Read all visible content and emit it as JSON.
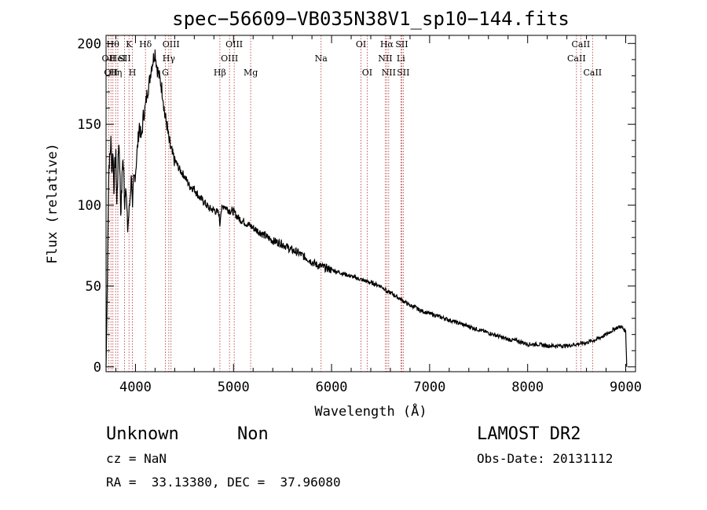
{
  "chart_data": {
    "type": "line",
    "title": "spec−56609−VB035N38V1_sp10−144.fits",
    "xlabel": "Wavelength (Å)",
    "ylabel": "Flux (relative)",
    "xlim": [
      3700,
      9100
    ],
    "ylim": [
      -3,
      205
    ],
    "xticks": [
      4000,
      5000,
      6000,
      7000,
      8000,
      9000
    ],
    "yticks": [
      0,
      50,
      100,
      150,
      200
    ],
    "grid": false,
    "series": [
      {
        "x": [
          3700,
          3710,
          3720,
          3730,
          3740,
          3750,
          3760,
          3770,
          3780,
          3790,
          3800,
          3810,
          3820,
          3830,
          3840,
          3850,
          3860,
          3870,
          3880,
          3890,
          3900,
          3920,
          3940,
          3960,
          3970,
          3980,
          4000,
          4020,
          4040,
          4060,
          4080,
          4100,
          4120,
          4140,
          4160,
          4180,
          4200,
          4220,
          4240,
          4260,
          4280,
          4300,
          4320,
          4340,
          4360,
          4380,
          4400,
          4450,
          4500,
          4550,
          4600,
          4650,
          4700,
          4750,
          4800,
          4850,
          4861,
          4870,
          4900,
          4950,
          5000,
          5050,
          5100,
          5150,
          5200,
          5250,
          5300,
          5350,
          5400,
          5450,
          5500,
          5550,
          5600,
          5650,
          5700,
          5750,
          5800,
          5850,
          5900,
          5950,
          6000,
          6050,
          6100,
          6150,
          6200,
          6250,
          6300,
          6350,
          6400,
          6450,
          6500,
          6550,
          6563,
          6600,
          6650,
          6700,
          6750,
          6800,
          6850,
          6900,
          6950,
          7000,
          7100,
          7200,
          7300,
          7400,
          7500,
          7600,
          7700,
          7800,
          7900,
          8000,
          8100,
          8200,
          8300,
          8400,
          8500,
          8600,
          8700,
          8800,
          8850,
          8900,
          8950,
          9000,
          9010
        ],
        "values": [
          0,
          35,
          90,
          125,
          130,
          140,
          120,
          135,
          110,
          125,
          130,
          100,
          120,
          140,
          125,
          95,
          110,
          130,
          120,
          100,
          115,
          85,
          100,
          120,
          95,
          115,
          120,
          135,
          150,
          140,
          155,
          160,
          170,
          175,
          185,
          190,
          195,
          185,
          180,
          175,
          168,
          155,
          150,
          140,
          135,
          130,
          128,
          122,
          118,
          112,
          110,
          105,
          102,
          98,
          97,
          95,
          88,
          96,
          100,
          97,
          96,
          92,
          90,
          88,
          86,
          84,
          82,
          80,
          78,
          77,
          76,
          74,
          72,
          71,
          69,
          67,
          65,
          63,
          62,
          61,
          60,
          59,
          58,
          57,
          56,
          55,
          54,
          53,
          52,
          51,
          50,
          48,
          46,
          46,
          44,
          42,
          40,
          38,
          37,
          35,
          34,
          33,
          31,
          29,
          27,
          25,
          23,
          21,
          19,
          17,
          16,
          14,
          14,
          13,
          13,
          13,
          14,
          15,
          17,
          20,
          22,
          24,
          25,
          22,
          0
        ]
      }
    ],
    "lines": [
      {
        "wave": 3727,
        "label": "OII",
        "row": 1
      },
      {
        "wave": 3750,
        "label": "OII",
        "row": 2
      },
      {
        "wave": 3770,
        "label": "Hθ",
        "row": 0
      },
      {
        "wave": 3798,
        "label": "Hη",
        "row": 2
      },
      {
        "wave": 3820,
        "label": "HeI",
        "row": 1
      },
      {
        "wave": 3889,
        "label": "SII",
        "row": 1
      },
      {
        "wave": 3934,
        "label": "K",
        "row": 0
      },
      {
        "wave": 3969,
        "label": "H",
        "row": 2
      },
      {
        "wave": 4102,
        "label": "Hδ",
        "row": 0
      },
      {
        "wave": 4305,
        "label": "G",
        "row": 2
      },
      {
        "wave": 4340,
        "label": "Hγ",
        "row": 1
      },
      {
        "wave": 4363,
        "label": "OIII",
        "row": 0
      },
      {
        "wave": 4861,
        "label": "Hβ",
        "row": 2
      },
      {
        "wave": 4959,
        "label": "OIII",
        "row": 1
      },
      {
        "wave": 5007,
        "label": "OIII",
        "row": 0
      },
      {
        "wave": 5175,
        "label": "Mg",
        "row": 2
      },
      {
        "wave": 5893,
        "label": "Na",
        "row": 1
      },
      {
        "wave": 6300,
        "label": "OI",
        "row": 0
      },
      {
        "wave": 6363,
        "label": "OI",
        "row": 2
      },
      {
        "wave": 6548,
        "label": "NII",
        "row": 1
      },
      {
        "wave": 6563,
        "label": "Hα",
        "row": 0
      },
      {
        "wave": 6583,
        "label": "NII",
        "row": 2
      },
      {
        "wave": 6707,
        "label": "Li",
        "row": 1
      },
      {
        "wave": 6716,
        "label": "SII",
        "row": 0
      },
      {
        "wave": 6731,
        "label": "SII",
        "row": 2
      },
      {
        "wave": 8498,
        "label": "CaII",
        "row": 1
      },
      {
        "wave": 8542,
        "label": "CaII",
        "row": 0
      },
      {
        "wave": 8662,
        "label": "CaII",
        "row": 2
      }
    ]
  },
  "footer": {
    "object_class": "Unknown",
    "subclass": "Non",
    "survey": "LAMOST DR2",
    "cz": "cz = NaN",
    "obs_date": "Obs-Date: 20131112",
    "coords": "RA =  33.13380, DEC =  37.96080"
  }
}
